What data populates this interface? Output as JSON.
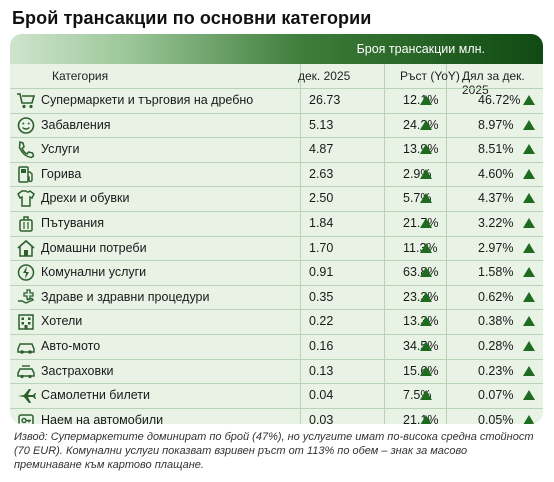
{
  "title": "Брой трансакции по основни категории",
  "banner": "Броя трансакции млн.",
  "headers": {
    "category": "Категория",
    "dec": "дек. 2025",
    "growth": "Ръст (YoY)",
    "share": "Дял за дек. 2025"
  },
  "colors": {
    "accent": "#1f6b1f",
    "table_bg": "#e8f3e6",
    "banner_dark": "#0f4a12"
  },
  "rows": [
    {
      "icon": "shopping-cart-icon",
      "name": "Супермаркети и търговия на дребно",
      "dec": "26.73",
      "growth": "12.1%",
      "share": "46.72%"
    },
    {
      "icon": "smile-icon",
      "name": "Забавления",
      "dec": "5.13",
      "growth": "24.2%",
      "share": "8.97%"
    },
    {
      "icon": "phone-icon",
      "name": "Услуги",
      "dec": "4.87",
      "growth": "13.9%",
      "share": "8.51%"
    },
    {
      "icon": "fuel-pump-icon",
      "name": "Горива",
      "dec": "2.63",
      "growth": "2.9%",
      "share": "4.60%"
    },
    {
      "icon": "shirt-icon",
      "name": "Дрехи и обувки",
      "dec": "2.50",
      "growth": "5.7%",
      "share": "4.37%"
    },
    {
      "icon": "luggage-icon",
      "name": "Пътувания",
      "dec": "1.84",
      "growth": "21.7%",
      "share": "3.22%"
    },
    {
      "icon": "house-icon",
      "name": "Домашни потреби",
      "dec": "1.70",
      "growth": "11.3%",
      "share": "2.97%"
    },
    {
      "icon": "lightning-icon",
      "name": "Комунални услуги",
      "dec": "0.91",
      "growth": "63.8%",
      "share": "1.58%"
    },
    {
      "icon": "health-hand-icon",
      "name": "Здраве и здравни процедури",
      "dec": "0.35",
      "growth": "23.3%",
      "share": "0.62%"
    },
    {
      "icon": "hotel-icon",
      "name": "Хотели",
      "dec": "0.22",
      "growth": "13.3%",
      "share": "0.38%"
    },
    {
      "icon": "car-icon",
      "name": "Авто-мото",
      "dec": "0.16",
      "growth": "34.5%",
      "share": "0.28%"
    },
    {
      "icon": "insurance-car-icon",
      "name": "Застраховки",
      "dec": "0.13",
      "growth": "15.6%",
      "share": "0.23%"
    },
    {
      "icon": "airplane-icon",
      "name": "Самолетни билети",
      "dec": "0.04",
      "growth": "7.5%",
      "share": "0.07%"
    },
    {
      "icon": "car-key-icon",
      "name": "Наем на автомобили",
      "dec": "0.03",
      "growth": "21.1%",
      "share": "0.05%"
    }
  ],
  "note": "Извод: Супермаркетите доминират по брой (47%), но услугите имат по-висока средна стойност (70 EUR). Комунални услуги показват взривен ръст от 113% по обем – знак за масово преминаване към картово плащане."
}
